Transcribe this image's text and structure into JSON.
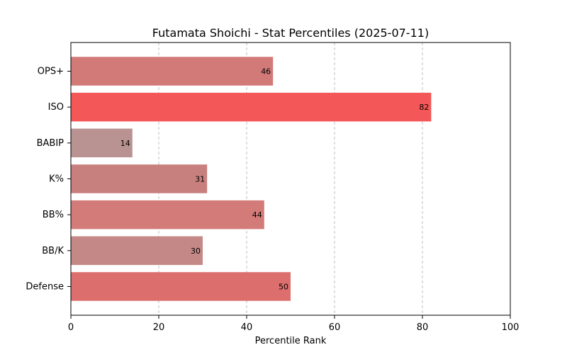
{
  "chart_data": {
    "type": "bar",
    "orientation": "horizontal",
    "title": "Futamata Shoichi - Stat Percentiles (2025-07-11)",
    "xlabel": "Percentile Rank",
    "ylabel": "",
    "xlim": [
      0,
      100
    ],
    "xticks": [
      0,
      20,
      40,
      60,
      80,
      100
    ],
    "grid": "x-dashed",
    "categories": [
      "OPS+",
      "ISO",
      "BABIP",
      "K%",
      "BB%",
      "BB/K",
      "Defense"
    ],
    "values": [
      46,
      82,
      14,
      31,
      44,
      30,
      50
    ],
    "bar_colors": [
      "#d27a77",
      "#f45757",
      "#b99391",
      "#c8807e",
      "#d27b78",
      "#c48886",
      "#dc6f6d"
    ],
    "data_labels": [
      "46",
      "82",
      "14",
      "31",
      "44",
      "30",
      "50"
    ]
  }
}
